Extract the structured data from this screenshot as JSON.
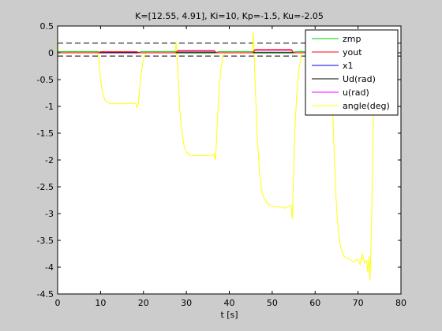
{
  "chart_data": {
    "type": "line",
    "title": "K=[12.55, 4.91], Ki=10, Kp=-1.5, Ku=-2.05",
    "xlabel": "t [s]",
    "ylabel": "",
    "xlim": [
      0,
      80
    ],
    "ylim": [
      -4.5,
      0.5
    ],
    "xticks": [
      0,
      10,
      20,
      30,
      40,
      50,
      60,
      70,
      80
    ],
    "xtick_labels": [
      "0",
      "10",
      "20",
      "30",
      "40",
      "50",
      "60",
      "70",
      "80"
    ],
    "yticks": [
      0.5,
      0,
      -0.5,
      -1,
      -1.5,
      -2,
      -2.5,
      -3,
      -3.5,
      -4,
      -4.5
    ],
    "ytick_labels": [
      "0.5",
      "0",
      "-0.5",
      "-1",
      "-1.5",
      "-2",
      "-2.5",
      "-3",
      "-3.5",
      "-4",
      "-4.5"
    ],
    "grid": false,
    "legend_position": "top-right",
    "colors": {
      "background": "#cccccc",
      "axes_face": "#ffffff",
      "zmp": "#00cc00",
      "yout": "#ff0000",
      "x1": "#0000ff",
      "ud": "#000000",
      "u": "#ff00ff",
      "angle": "#ffff00"
    },
    "reference_lines": [
      {
        "style": "dashed",
        "color": "#000000",
        "y": 0.18
      },
      {
        "style": "dashed",
        "color": "#000000",
        "y": -0.06
      }
    ],
    "series": [
      {
        "name": "zmp",
        "key": "zmp",
        "x": [
          0,
          9.5,
          10,
          19,
          19.5,
          27.5,
          28,
          37,
          37.5,
          45.5,
          46,
          55,
          55.5,
          63.5,
          64,
          73,
          73.5
        ],
        "y": [
          0.02,
          0.02,
          0.01,
          0.01,
          0.02,
          0.02,
          0.01,
          0.01,
          0.02,
          0.02,
          0.01,
          0.01,
          0.02,
          0.02,
          0.01,
          0.01,
          0.02
        ]
      },
      {
        "name": "yout",
        "key": "yout",
        "x": [
          0,
          9.5,
          10,
          18.5,
          19,
          27.5,
          28,
          36.5,
          37,
          45.5,
          46,
          54.5,
          55,
          63.5,
          64,
          73,
          73.5
        ],
        "y": [
          0.0,
          0.0,
          0.02,
          0.02,
          0.0,
          0.0,
          0.04,
          0.04,
          0.0,
          0.0,
          0.06,
          0.06,
          0.0,
          0.0,
          0.0,
          0.0,
          0.0
        ]
      },
      {
        "name": "x1",
        "key": "x1",
        "x": [
          0,
          80
        ],
        "y": [
          0.0,
          0.0
        ]
      },
      {
        "name": "Ud(rad)",
        "key": "ud",
        "x": [
          0,
          80
        ],
        "y": [
          0.0,
          0.0
        ]
      },
      {
        "name": "u(rad)",
        "key": "u",
        "x": [
          0,
          9.5,
          10,
          18.5,
          19,
          27.5,
          28,
          36.5,
          37,
          45.5,
          46,
          54.5,
          55,
          63.5,
          64,
          73,
          73.5
        ],
        "y": [
          0.0,
          0.0,
          0.015,
          0.015,
          0.0,
          0.0,
          0.03,
          0.03,
          0.0,
          0.0,
          0.045,
          0.045,
          0.0,
          0.0,
          0.0,
          0.0,
          0.0
        ]
      },
      {
        "name": "angle(deg)",
        "key": "angle",
        "x": [
          0,
          0.1,
          0.3,
          9.2,
          9.6,
          10.0,
          10.5,
          11.0,
          11.5,
          12.0,
          12.5,
          13.0,
          14.0,
          16.0,
          18.2,
          18.5,
          18.8,
          19.2,
          19.6,
          20.0,
          20.5,
          27.4,
          27.6,
          28.0,
          28.5,
          29.0,
          29.5,
          30.0,
          31.0,
          33.0,
          35.0,
          36.0,
          36.5,
          36.8,
          37.2,
          37.6,
          38.0,
          38.5,
          39.0,
          45.4,
          45.6,
          46.0,
          46.5,
          47.0,
          47.5,
          48.0,
          49.0,
          50.0,
          51.0,
          52.0,
          53.0,
          54.0,
          54.4,
          54.7,
          55.0,
          55.3,
          55.7,
          56.2,
          57.0,
          63.4,
          63.6,
          64.0,
          64.5,
          65.0,
          65.5,
          66.0,
          66.5,
          67.0,
          68.0,
          69.0,
          70.0,
          70.5,
          71.0,
          71.5,
          72.0,
          72.3,
          72.6,
          72.8,
          73.0,
          73.2,
          73.4,
          73.6,
          73.8
        ],
        "y": [
          0.35,
          0.0,
          0.02,
          0.02,
          -0.1,
          -0.5,
          -0.75,
          -0.88,
          -0.92,
          -0.94,
          -0.95,
          -0.95,
          -0.95,
          -0.95,
          -0.94,
          -1.02,
          -0.96,
          -0.6,
          -0.3,
          -0.12,
          0.0,
          0.0,
          0.2,
          -0.3,
          -1.1,
          -1.5,
          -1.75,
          -1.85,
          -1.92,
          -1.92,
          -1.92,
          -1.92,
          -1.88,
          -2.0,
          -1.3,
          -0.7,
          -0.35,
          -0.1,
          0.0,
          0.0,
          0.4,
          -0.5,
          -1.5,
          -2.2,
          -2.55,
          -2.7,
          -2.82,
          -2.86,
          -2.88,
          -2.87,
          -2.9,
          -2.86,
          -2.85,
          -3.1,
          -2.2,
          -1.4,
          -0.8,
          -0.3,
          0.0,
          0.0,
          0.3,
          -0.8,
          -2.0,
          -2.9,
          -3.4,
          -3.65,
          -3.75,
          -3.82,
          -3.85,
          -3.9,
          -3.85,
          -3.95,
          -3.75,
          -3.92,
          -3.88,
          -4.1,
          -3.8,
          -4.25,
          -3.7,
          -3.0,
          -2.0,
          -1.2,
          -0.1
        ]
      }
    ]
  }
}
